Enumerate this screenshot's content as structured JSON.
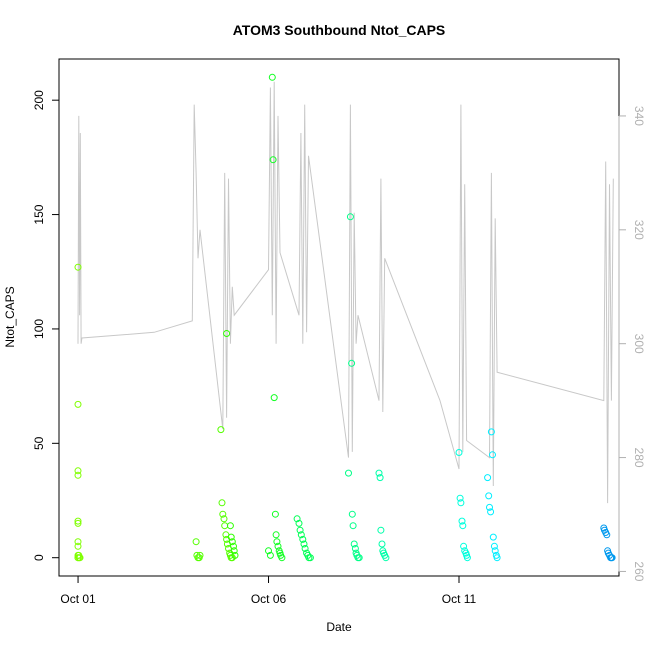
{
  "chart_data": {
    "type": "scatter",
    "title": "ATOM3 Southbound Ntot_CAPS",
    "xlabel": "Date",
    "ylabel": "Ntot_CAPS",
    "x_ticks": [
      "Oct 01",
      "Oct 06",
      "Oct 11"
    ],
    "x_tick_days": [
      1,
      6,
      11
    ],
    "xlim": [
      0.5,
      15.2
    ],
    "ylim": [
      -8,
      218
    ],
    "y_ticks": [
      0,
      50,
      100,
      150,
      200
    ],
    "y2_ticks": [
      260,
      280,
      300,
      320,
      340
    ],
    "y2lim": [
      259.2,
      350
    ],
    "grid": false,
    "point_style": "open-circle",
    "series": [
      {
        "color": "#7fff00",
        "x": [
          1.0,
          1.0,
          1.0,
          1.0,
          1.0,
          1.0,
          1.0,
          1.0,
          1.0,
          1.0,
          1.0,
          1.02,
          1.03,
          1.05
        ],
        "y": [
          127,
          67,
          38,
          36,
          16,
          15,
          7,
          5,
          1,
          0,
          0,
          1,
          0,
          0
        ]
      },
      {
        "color": "#55ff00",
        "x": [
          4.1,
          4.12,
          4.15,
          4.18,
          4.2,
          4.75,
          4.78,
          4.8,
          4.83,
          4.85,
          4.88,
          4.9,
          4.92,
          4.95,
          4.98,
          5.0,
          5.02,
          5.05
        ],
        "y": [
          7,
          1,
          0,
          0,
          1,
          56,
          24,
          19,
          17,
          14,
          10,
          8,
          6,
          4,
          2,
          1,
          0,
          0
        ]
      },
      {
        "color": "#2eff00",
        "x": [
          4.9,
          5.0,
          5.02,
          5.05,
          5.08,
          5.1,
          5.12
        ],
        "y": [
          98,
          14,
          9,
          7,
          5,
          3,
          1
        ]
      },
      {
        "color": "#11ff22",
        "x": [
          6.0,
          6.05,
          6.1,
          6.12,
          6.15,
          6.18,
          6.2,
          6.22,
          6.25,
          6.28,
          6.3,
          6.32,
          6.35
        ],
        "y": [
          3,
          1,
          210,
          174,
          70,
          19,
          10,
          7,
          5,
          3,
          2,
          1,
          0
        ]
      },
      {
        "color": "#00ff55",
        "x": [
          6.75,
          6.8,
          6.83,
          6.86,
          6.9,
          6.93,
          6.96,
          7.0,
          7.03,
          7.06,
          7.1
        ],
        "y": [
          17,
          15,
          12,
          10,
          8,
          6,
          4,
          2,
          1,
          0,
          0
        ]
      },
      {
        "color": "#00ff88",
        "x": [
          8.1,
          8.15,
          8.18,
          8.2,
          8.22,
          8.25,
          8.28,
          8.3,
          8.32,
          8.35,
          8.38
        ],
        "y": [
          37,
          149,
          85,
          19,
          14,
          6,
          4,
          2,
          1,
          0,
          0
        ]
      },
      {
        "color": "#00ffaa",
        "x": [
          8.9,
          8.93,
          8.95,
          8.98,
          9.0,
          9.02,
          9.05,
          9.08
        ],
        "y": [
          37,
          35,
          12,
          6,
          3,
          2,
          1,
          0
        ]
      },
      {
        "color": "#00ffdd",
        "x": [
          11.0,
          11.03,
          11.05,
          11.08,
          11.1,
          11.12,
          11.15,
          11.18,
          11.2,
          11.22
        ],
        "y": [
          46,
          26,
          24,
          16,
          14,
          5,
          3,
          2,
          1,
          0
        ]
      },
      {
        "color": "#00eeff",
        "x": [
          11.75,
          11.78,
          11.8,
          11.83,
          11.85,
          11.88,
          11.9,
          11.93,
          11.95,
          11.98,
          12.0
        ],
        "y": [
          35,
          27,
          22,
          20,
          55,
          45,
          9,
          5,
          3,
          1,
          0
        ]
      },
      {
        "color": "#0099ee",
        "x": [
          14.8,
          14.82,
          14.85,
          14.88,
          14.9,
          14.92,
          14.95,
          14.98,
          15.0,
          15.02
        ],
        "y": [
          13,
          12,
          11,
          10,
          3,
          2,
          1,
          0,
          0,
          0
        ]
      }
    ],
    "line_series": {
      "axis": "right",
      "color": "#c8c8c8",
      "x": [
        1.0,
        1.02,
        1.04,
        1.06,
        1.08,
        1.1,
        3.0,
        4.0,
        4.05,
        4.1,
        4.15,
        4.2,
        4.8,
        4.85,
        4.9,
        4.95,
        5.0,
        5.05,
        5.1,
        6.0,
        6.05,
        6.1,
        6.15,
        6.2,
        6.25,
        6.3,
        6.8,
        6.85,
        6.9,
        6.95,
        7.0,
        7.05,
        8.1,
        8.15,
        8.2,
        8.25,
        8.3,
        8.35,
        8.9,
        8.95,
        9.0,
        9.05,
        10.5,
        11.0,
        11.05,
        11.1,
        11.15,
        11.2,
        11.8,
        11.85,
        11.9,
        11.95,
        12.0,
        14.8,
        14.85,
        14.9,
        14.95,
        15.0,
        15.05
      ],
      "y": [
        300,
        340,
        305,
        337,
        300,
        301,
        302,
        304,
        342,
        330,
        315,
        320,
        285,
        330,
        287,
        329,
        300,
        310,
        305,
        313,
        345,
        305,
        346,
        300,
        340,
        316,
        305,
        337,
        300,
        342,
        302,
        333,
        280,
        342,
        281,
        323,
        300,
        305,
        290,
        329,
        288,
        315,
        290,
        278,
        342,
        281,
        328,
        283,
        280,
        330,
        275,
        322,
        295,
        290,
        332,
        272,
        328,
        290,
        329
      ]
    }
  }
}
